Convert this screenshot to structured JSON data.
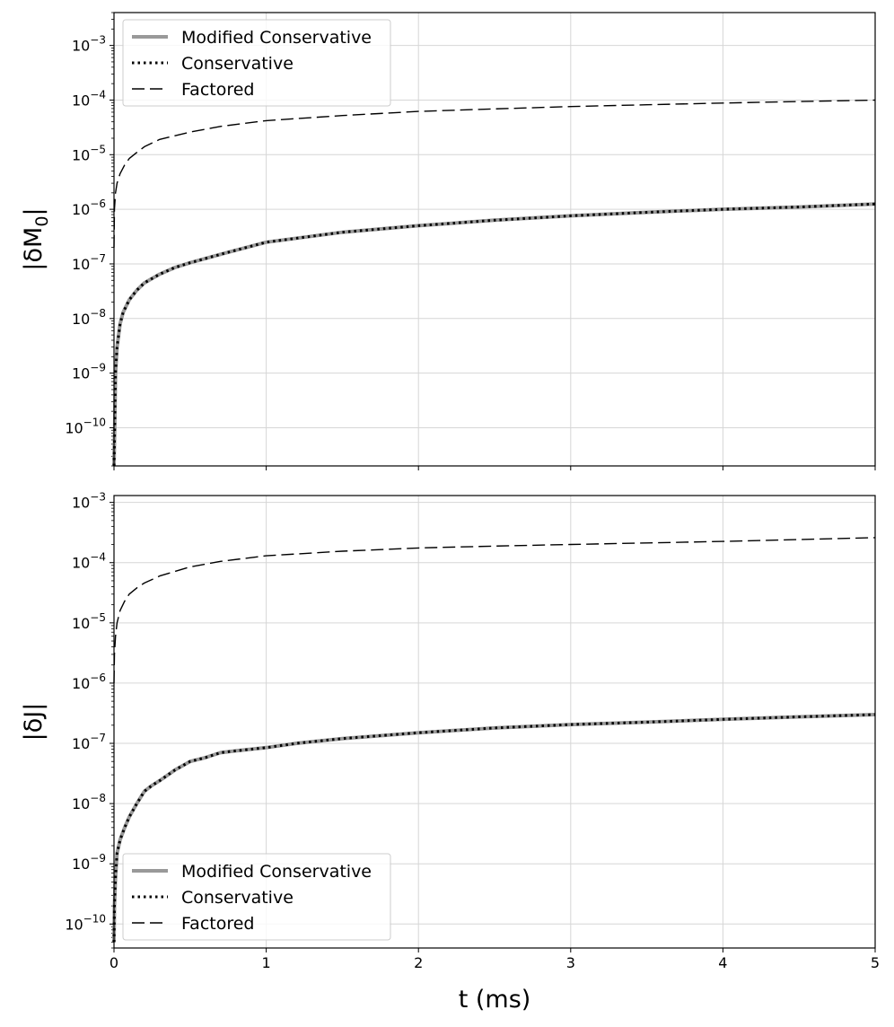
{
  "chart_data": [
    {
      "type": "line",
      "ylabel": "|δM₀|",
      "ylabel_tex": {
        "base": "|δM",
        "sub": "0",
        "end": "|"
      },
      "xlabel": "",
      "y_scale": "log",
      "xlim": [
        0,
        5
      ],
      "ylim": [
        2e-11,
        0.004
      ],
      "x_ticks": [
        "0",
        "1",
        "2",
        "3",
        "4",
        "5"
      ],
      "x_tick_labels_visible": false,
      "y_ticks": [
        {
          "exp": "-10",
          "base": "10"
        },
        {
          "exp": "-9",
          "base": "10"
        },
        {
          "exp": "-8",
          "base": "10"
        },
        {
          "exp": "-7",
          "base": "10"
        },
        {
          "exp": "-6",
          "base": "10"
        },
        {
          "exp": "-5",
          "base": "10"
        },
        {
          "exp": "-4",
          "base": "10"
        },
        {
          "exp": "-3",
          "base": "10"
        }
      ],
      "grid": true,
      "legend_position": "top-left",
      "series": [
        {
          "name": "Modified Conservative",
          "style": "solid",
          "color": "#999999",
          "x": [
            0,
            0.005,
            0.01,
            0.02,
            0.04,
            0.06,
            0.1,
            0.15,
            0.2,
            0.3,
            0.4,
            0.5,
            0.7,
            1,
            1.5,
            2,
            2.5,
            3,
            3.5,
            4,
            4.5,
            5
          ],
          "y": [
            2e-11,
            1e-10,
            1e-09,
            3e-09,
            8e-09,
            1.3e-08,
            2.2e-08,
            3.3e-08,
            4.5e-08,
            6.5e-08,
            8.6e-08,
            1.05e-07,
            1.5e-07,
            2.5e-07,
            3.8e-07,
            5e-07,
            6.3e-07,
            7.6e-07,
            8.8e-07,
            1e-06,
            1.1e-06,
            1.25e-06
          ]
        },
        {
          "name": "Conservative",
          "style": "dotted",
          "color": "#000000",
          "x": [
            0,
            0.005,
            0.01,
            0.02,
            0.04,
            0.06,
            0.1,
            0.15,
            0.2,
            0.3,
            0.4,
            0.5,
            0.7,
            1,
            1.5,
            2,
            2.5,
            3,
            3.5,
            4,
            4.5,
            5
          ],
          "y": [
            2e-11,
            1e-10,
            1e-09,
            3e-09,
            8e-09,
            1.3e-08,
            2.2e-08,
            3.3e-08,
            4.5e-08,
            6.5e-08,
            8.6e-08,
            1.05e-07,
            1.5e-07,
            2.5e-07,
            3.8e-07,
            5e-07,
            6.3e-07,
            7.6e-07,
            8.8e-07,
            1e-06,
            1.1e-06,
            1.25e-06
          ]
        },
        {
          "name": "Factored",
          "style": "dashed",
          "color": "#000000",
          "x": [
            0,
            0.003,
            0.01,
            0.02,
            0.04,
            0.07,
            0.1,
            0.15,
            0.2,
            0.3,
            0.5,
            0.7,
            1,
            1.5,
            2,
            2.5,
            3,
            3.5,
            4,
            4.5,
            5
          ],
          "y": [
            2e-07,
            1e-06,
            2e-06,
            3e-06,
            4.5e-06,
            6.5e-06,
            8.5e-06,
            1.1e-05,
            1.4e-05,
            1.9e-05,
            2.6e-05,
            3.3e-05,
            4.2e-05,
            5.2e-05,
            6.2e-05,
            6.9e-05,
            7.6e-05,
            8.2e-05,
            8.8e-05,
            9.4e-05,
            0.0001
          ]
        }
      ]
    },
    {
      "type": "line",
      "ylabel": "|δJ|",
      "xlabel": "t (ms)",
      "y_scale": "log",
      "xlim": [
        0,
        5
      ],
      "ylim": [
        4e-11,
        0.0013
      ],
      "x_ticks": [
        "0",
        "1",
        "2",
        "3",
        "4",
        "5"
      ],
      "x_tick_labels_visible": true,
      "y_ticks": [
        {
          "exp": "-10",
          "base": "10"
        },
        {
          "exp": "-9",
          "base": "10"
        },
        {
          "exp": "-8",
          "base": "10"
        },
        {
          "exp": "-7",
          "base": "10"
        },
        {
          "exp": "-6",
          "base": "10"
        },
        {
          "exp": "-5",
          "base": "10"
        },
        {
          "exp": "-4",
          "base": "10"
        },
        {
          "exp": "-3",
          "base": "10"
        }
      ],
      "grid": true,
      "legend_position": "bottom-left",
      "series": [
        {
          "name": "Modified Conservative",
          "style": "solid",
          "color": "#999999",
          "x": [
            0,
            0.003,
            0.01,
            0.02,
            0.04,
            0.07,
            0.1,
            0.15,
            0.2,
            0.25,
            0.3,
            0.4,
            0.5,
            0.6,
            0.7,
            0.8,
            1,
            1.2,
            1.5,
            2,
            2.5,
            3,
            3.5,
            4,
            4.5,
            5
          ],
          "y": [
            5e-11,
            2e-10,
            6e-10,
            1.5e-09,
            2.5e-09,
            4e-09,
            6e-09,
            1e-08,
            1.6e-08,
            2e-08,
            2.4e-08,
            3.6e-08,
            5e-08,
            5.8e-08,
            7e-08,
            7.5e-08,
            8.5e-08,
            1e-07,
            1.2e-07,
            1.5e-07,
            1.8e-07,
            2.05e-07,
            2.25e-07,
            2.5e-07,
            2.75e-07,
            3e-07
          ]
        },
        {
          "name": "Conservative",
          "style": "dotted",
          "color": "#000000",
          "x": [
            0,
            0.003,
            0.01,
            0.02,
            0.04,
            0.07,
            0.1,
            0.15,
            0.2,
            0.25,
            0.3,
            0.4,
            0.5,
            0.6,
            0.7,
            0.8,
            1,
            1.2,
            1.5,
            2,
            2.5,
            3,
            3.5,
            4,
            4.5,
            5
          ],
          "y": [
            5e-11,
            2e-10,
            6e-10,
            1.5e-09,
            2.5e-09,
            4e-09,
            6e-09,
            1e-08,
            1.6e-08,
            2e-08,
            2.4e-08,
            3.6e-08,
            5e-08,
            5.8e-08,
            7e-08,
            7.5e-08,
            8.5e-08,
            1e-07,
            1.2e-07,
            1.5e-07,
            1.8e-07,
            2.05e-07,
            2.25e-07,
            2.5e-07,
            2.75e-07,
            3e-07
          ]
        },
        {
          "name": "Factored",
          "style": "dashed",
          "color": "#000000",
          "x": [
            0,
            0.003,
            0.01,
            0.02,
            0.04,
            0.07,
            0.1,
            0.15,
            0.2,
            0.3,
            0.5,
            0.7,
            1,
            1.5,
            2,
            2.5,
            3,
            3.5,
            4,
            4.5,
            5
          ],
          "y": [
            1e-06,
            3e-06,
            6e-06,
            1e-05,
            1.6e-05,
            2.3e-05,
            3e-05,
            3.8e-05,
            4.6e-05,
            6e-05,
            8.5e-05,
            0.000105,
            0.00013,
            0.000155,
            0.000175,
            0.000188,
            0.0002,
            0.000212,
            0.000225,
            0.000242,
            0.00026
          ]
        }
      ]
    }
  ]
}
